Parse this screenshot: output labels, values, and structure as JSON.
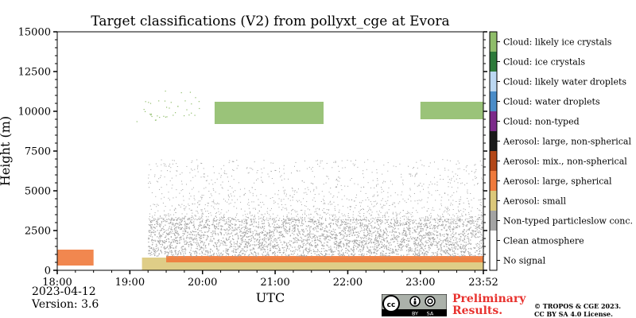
{
  "chart_data": {
    "type": "heatmap",
    "title": "Target classifications (V2) from pollyxt_cge at Evora",
    "xlabel": "UTC",
    "ylabel": "Height (m)",
    "x_tick_labels": [
      "18:00",
      "19:00",
      "20:00",
      "21:00",
      "22:00",
      "23:00",
      "23:52"
    ],
    "x_range": [
      "18:00",
      "23:52"
    ],
    "y_ticks": [
      0,
      2500,
      5000,
      7500,
      10000,
      12500,
      15000
    ],
    "y_tick_labels": [
      "0",
      "2500",
      "5000",
      "7500",
      "10000",
      "12500",
      "15000"
    ],
    "ylim": [
      0,
      15000
    ],
    "legend_placement": "right colorbar",
    "classes": [
      {
        "label": "No signal",
        "color": "#ffffff"
      },
      {
        "label": "Clean atmosphere",
        "color": "#ffffff"
      },
      {
        "label": "Non-typed particleslow conc.",
        "color": "#a3a3a3"
      },
      {
        "label": "Aerosol: small",
        "color": "#dcc87a"
      },
      {
        "label": "Aerosol: large, spherical",
        "color": "#ef7a3c"
      },
      {
        "label": "Aerosol: mix., non-spherical",
        "color": "#b34718"
      },
      {
        "label": "Aerosol: large, non-spherical",
        "color": "#1a1a1a"
      },
      {
        "label": "Cloud: non-typed",
        "color": "#7c2a8a"
      },
      {
        "label": "Cloud: water droplets",
        "color": "#4a8cc8"
      },
      {
        "label": "Cloud: likely water droplets",
        "color": "#bcd8f2"
      },
      {
        "label": "Cloud: ice crystals",
        "color": "#2d7a3a"
      },
      {
        "label": "Cloud: likely ice crystals",
        "color": "#8fbd6a"
      }
    ],
    "regions": [
      {
        "class": "Aerosol: small",
        "start": "19:10",
        "end": "23:52",
        "bottom_m": 0,
        "top_m": 800
      },
      {
        "class": "Aerosol: large, spherical",
        "start": "19:30",
        "end": "23:52",
        "bottom_m": 500,
        "top_m": 900
      },
      {
        "class": "Non-typed particleslow conc.",
        "start": "19:15",
        "end": "23:52",
        "bottom_m": 900,
        "top_m": 3200
      },
      {
        "class": "Aerosol: large, spherical",
        "start": "18:00",
        "end": "18:30",
        "bottom_m": 300,
        "top_m": 1300
      },
      {
        "class": "Cloud: likely ice crystals",
        "start": "19:05",
        "end": "20:00",
        "bottom_m": 9200,
        "top_m": 11300
      },
      {
        "class": "Cloud: likely ice crystals",
        "start": "20:10",
        "end": "21:40",
        "bottom_m": 9200,
        "top_m": 10600
      },
      {
        "class": "Cloud: likely ice crystals",
        "start": "23:00",
        "end": "23:52",
        "bottom_m": 9500,
        "top_m": 10600
      }
    ]
  },
  "date": "2023-04-12",
  "version": "Version: 3.6",
  "preliminary_line1": "Preliminary",
  "preliminary_line2": "Results.",
  "copyright_line1": "© TROPOS & CGE 2023.",
  "copyright_line2": "CC BY SA 4.0 License.",
  "license_badge": {
    "text_by": "BY",
    "text_sa": "SA",
    "cc": "cc",
    "icon": "creative-commons-by-sa-icon"
  }
}
